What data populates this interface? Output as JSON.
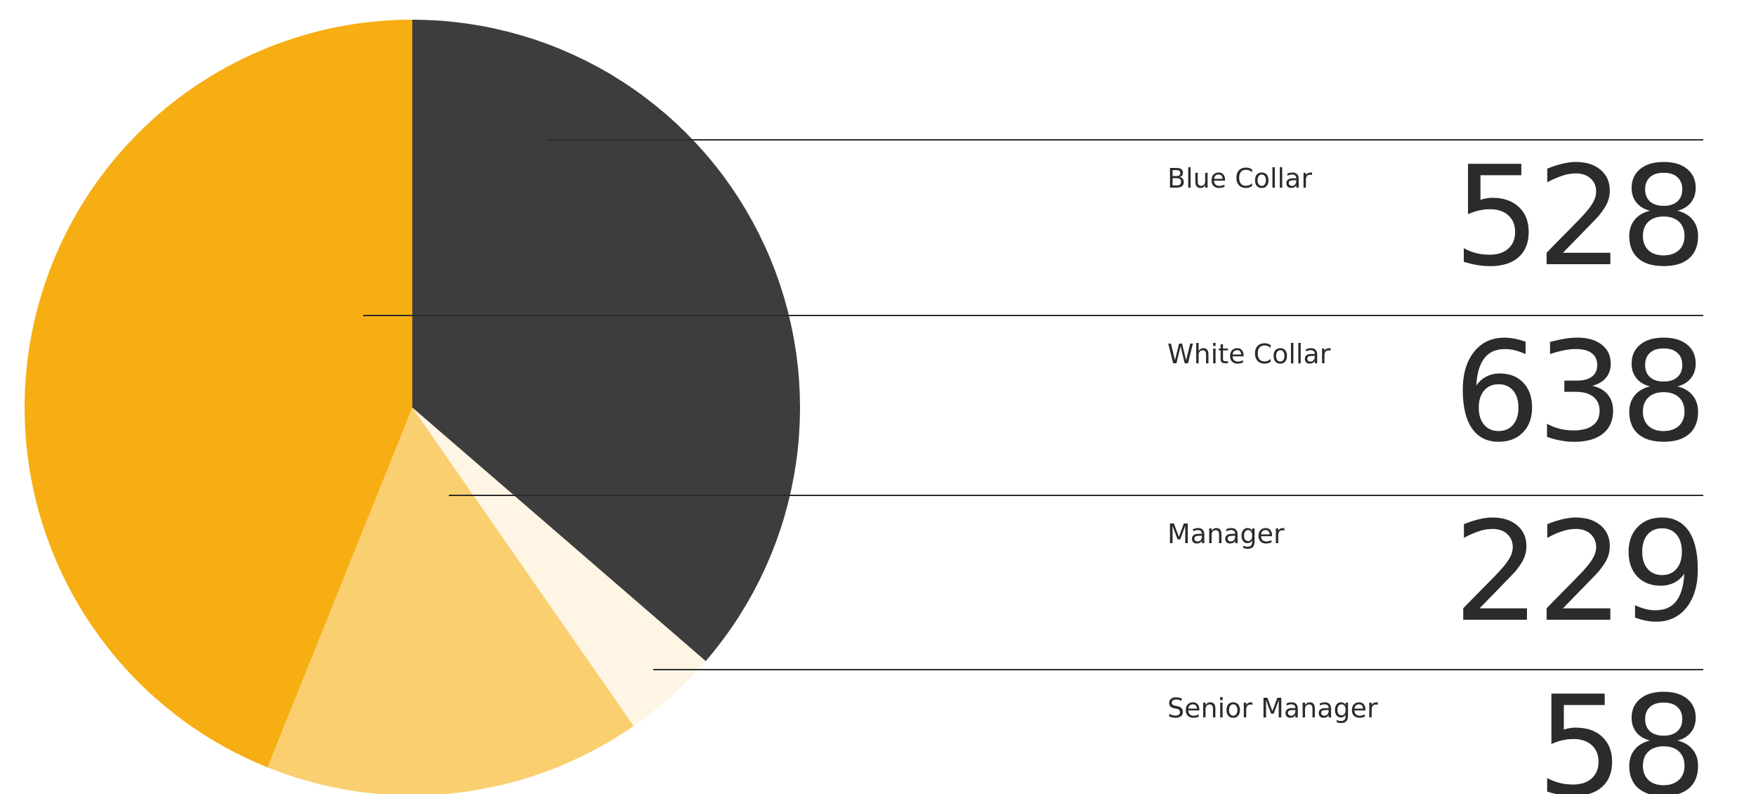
{
  "chart_data": {
    "type": "pie",
    "categories": [
      "Blue Collar",
      "White Collar",
      "Manager",
      "Senior Manager"
    ],
    "values": [
      528,
      638,
      229,
      58
    ],
    "colors": [
      "#3d3d3d",
      "#f6ae13",
      "#facf70",
      "#fef5e4"
    ],
    "slice_order": [
      0,
      3,
      2,
      1
    ]
  }
}
